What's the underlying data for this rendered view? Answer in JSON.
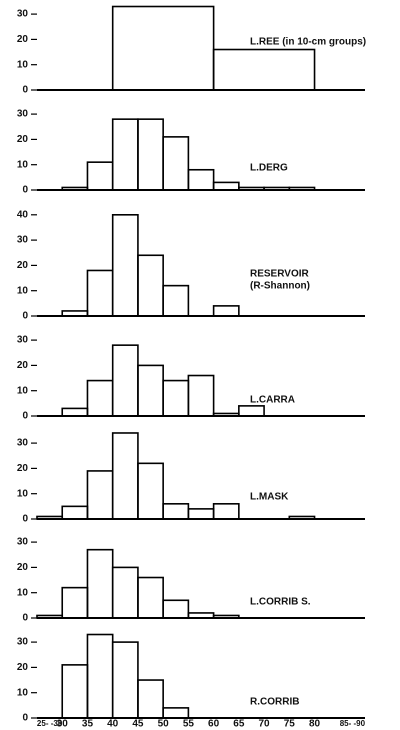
{
  "chart_data": [
    {
      "type": "histogram",
      "label": "L.REE (in 10-cm groups)",
      "bins": [
        40,
        60,
        80
      ],
      "values": [
        33,
        16
      ],
      "xlim": [
        25,
        90
      ],
      "ylim": [
        0,
        35
      ],
      "yticks": [
        0,
        10,
        20,
        30
      ]
    },
    {
      "type": "histogram",
      "label": "L.DERG",
      "bins": [
        30,
        35,
        40,
        45,
        50,
        55,
        60,
        65,
        70,
        75,
        80
      ],
      "values": [
        1,
        11,
        28,
        28,
        21,
        8,
        3,
        1,
        1,
        1
      ],
      "xlim": [
        25,
        90
      ],
      "ylim": [
        0,
        35
      ],
      "yticks": [
        0,
        10,
        20,
        30
      ]
    },
    {
      "type": "histogram",
      "label": "RESERVOIR",
      "sublabel": "(R-Shannon)",
      "bins": [
        30,
        35,
        40,
        45,
        50,
        55,
        60,
        65
      ],
      "values": [
        2,
        18,
        40,
        24,
        12,
        0,
        4
      ],
      "xlim": [
        25,
        90
      ],
      "ylim": [
        0,
        45
      ],
      "yticks": [
        0,
        10,
        20,
        30,
        40
      ]
    },
    {
      "type": "histogram",
      "label": "L.CARRA",
      "bins": [
        30,
        35,
        40,
        45,
        50,
        55,
        60,
        65,
        70
      ],
      "values": [
        3,
        14,
        28,
        20,
        14,
        16,
        1,
        4
      ],
      "xlim": [
        25,
        90
      ],
      "ylim": [
        0,
        32
      ],
      "yticks": [
        0,
        10,
        20,
        30
      ]
    },
    {
      "type": "histogram",
      "label": "L.MASK",
      "bins": [
        25,
        30,
        35,
        40,
        45,
        50,
        55,
        60,
        65,
        70,
        75,
        80
      ],
      "values": [
        1,
        5,
        19,
        34,
        22,
        6,
        4,
        6,
        0,
        0,
        1
      ],
      "xlim": [
        25,
        90
      ],
      "ylim": [
        0,
        36
      ],
      "yticks": [
        0,
        10,
        20,
        30
      ]
    },
    {
      "type": "histogram",
      "label": "L.CORRIB S.",
      "bins": [
        25,
        30,
        35,
        40,
        45,
        50,
        55,
        60,
        65
      ],
      "values": [
        1,
        12,
        27,
        20,
        16,
        7,
        2,
        1
      ],
      "xlim": [
        25,
        90
      ],
      "ylim": [
        0,
        32
      ],
      "yticks": [
        0,
        10,
        20,
        30
      ]
    },
    {
      "type": "histogram",
      "label": "R.CORRIB",
      "bins": [
        30,
        35,
        40,
        45,
        50,
        55
      ],
      "values": [
        21,
        33,
        30,
        15,
        4
      ],
      "xlim": [
        25,
        90
      ],
      "ylim": [
        0,
        35
      ],
      "yticks": [
        0,
        10,
        20,
        30
      ],
      "xticks": [
        {
          "value": 27.5,
          "label": "25- -30"
        },
        30,
        35,
        40,
        45,
        50,
        55,
        60,
        65,
        70,
        75,
        80,
        {
          "value": 87.5,
          "label": "85- -90"
        }
      ]
    }
  ]
}
